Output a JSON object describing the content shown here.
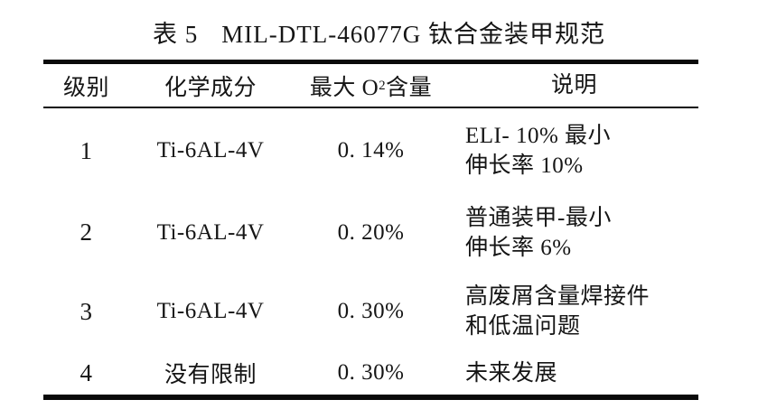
{
  "caption": {
    "table_label": "表 5",
    "title": "MIL-DTL-46077G 钛合金装甲规范"
  },
  "table": {
    "header": {
      "grade": "级别",
      "composition": "化学成分",
      "o2_prefix": "最大 O",
      "o2_sub": "2",
      "o2_suffix": " 含量",
      "description": "说明"
    },
    "rows": [
      {
        "grade": "1",
        "composition": "Ti-6AL-4V",
        "max_o2": "0. 14%",
        "description": "ELI- 10% 最小\n伸长率 10%"
      },
      {
        "grade": "2",
        "composition": "Ti-6AL-4V",
        "max_o2": "0. 20%",
        "description": "普通装甲-最小\n伸长率 6%"
      },
      {
        "grade": "3",
        "composition": "Ti-6AL-4V",
        "max_o2": "0. 30%",
        "description": "高废屑含量焊接件\n和低温问题"
      },
      {
        "grade": "4",
        "composition": "没有限制",
        "max_o2": "0. 30%",
        "description": "未来发展"
      }
    ]
  }
}
